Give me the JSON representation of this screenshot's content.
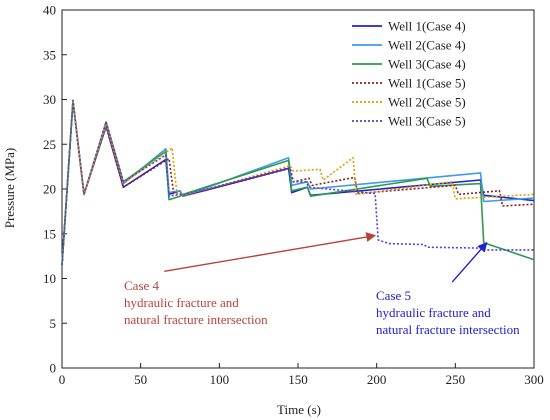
{
  "chart_data": {
    "type": "line",
    "title": "",
    "xlabel": "Time (s)",
    "ylabel": "Pressure (MPa)",
    "xlim": [
      0,
      300
    ],
    "ylim": [
      0,
      40
    ],
    "xticks": [
      0,
      50,
      100,
      150,
      200,
      250,
      300
    ],
    "yticks": [
      0,
      5,
      10,
      15,
      20,
      25,
      30,
      35,
      40
    ],
    "grid": false,
    "legend_position": "top-right",
    "series": [
      {
        "name": "Well 1(Case 4)",
        "color": "#1f1fd4",
        "dash": "solid",
        "points": [
          [
            0,
            11.5
          ],
          [
            7,
            29.8
          ],
          [
            14,
            19.4
          ],
          [
            28,
            27
          ],
          [
            39,
            20.2
          ],
          [
            66,
            23.3
          ],
          [
            68,
            19.4
          ],
          [
            75,
            19.8
          ],
          [
            77,
            19.2
          ],
          [
            144,
            22.3
          ],
          [
            146,
            19.6
          ],
          [
            156,
            20.2
          ],
          [
            158,
            19.3
          ],
          [
            266,
            21
          ],
          [
            268,
            19.3
          ],
          [
            300,
            18.7
          ]
        ]
      },
      {
        "name": "Well 2(Case 4)",
        "color": "#3d9be8",
        "dash": "solid",
        "points": [
          [
            0,
            11.5
          ],
          [
            7,
            29.8
          ],
          [
            14,
            19.4
          ],
          [
            28,
            27.3
          ],
          [
            39,
            20.6
          ],
          [
            66,
            24.5
          ],
          [
            68,
            19.6
          ],
          [
            75,
            19.8
          ],
          [
            77,
            19.2
          ],
          [
            144,
            23.5
          ],
          [
            146,
            20.4
          ],
          [
            156,
            20.8
          ],
          [
            158,
            20
          ],
          [
            266,
            21.8
          ],
          [
            268,
            18.6
          ],
          [
            300,
            19
          ]
        ]
      },
      {
        "name": "Well 3(Case 4)",
        "color": "#2e9a4a",
        "dash": "solid",
        "points": [
          [
            0,
            11.5
          ],
          [
            7,
            29.9
          ],
          [
            14,
            19.4
          ],
          [
            28,
            27.5
          ],
          [
            39,
            20.8
          ],
          [
            66,
            24.2
          ],
          [
            68,
            18.8
          ],
          [
            75,
            19.2
          ],
          [
            77,
            19.4
          ],
          [
            144,
            23.2
          ],
          [
            146,
            19.8
          ],
          [
            156,
            20.2
          ],
          [
            158,
            19.2
          ],
          [
            232,
            21.2
          ],
          [
            234,
            20.3
          ],
          [
            266,
            20.6
          ],
          [
            268,
            14
          ],
          [
            280,
            13.3
          ],
          [
            300,
            12.1
          ]
        ]
      },
      {
        "name": "Well 1(Case 5)",
        "color": "#8b2020",
        "dash": "dot",
        "points": [
          [
            0,
            11.5
          ],
          [
            7,
            29.8
          ],
          [
            14,
            19.4
          ],
          [
            28,
            27
          ],
          [
            39,
            20.2
          ],
          [
            68,
            23.4
          ],
          [
            71,
            19.5
          ],
          [
            75,
            19.5
          ],
          [
            77,
            19.2
          ],
          [
            145,
            22.3
          ],
          [
            147,
            20.8
          ],
          [
            157,
            21.2
          ],
          [
            159,
            20.4
          ],
          [
            186,
            21.3
          ],
          [
            188,
            19.5
          ],
          [
            250,
            20.4
          ],
          [
            252,
            19.4
          ],
          [
            278,
            19.8
          ],
          [
            280,
            18.1
          ],
          [
            300,
            18.3
          ]
        ]
      },
      {
        "name": "Well 2(Case 5)",
        "color": "#d9a000",
        "dash": "dot",
        "points": [
          [
            0,
            11.5
          ],
          [
            7,
            29.8
          ],
          [
            14,
            19.4
          ],
          [
            28,
            27.3
          ],
          [
            39,
            20.6
          ],
          [
            70,
            24.6
          ],
          [
            73,
            19.5
          ],
          [
            75,
            19.5
          ],
          [
            77,
            19.2
          ],
          [
            145,
            22.6
          ],
          [
            147,
            22
          ],
          [
            164,
            22.2
          ],
          [
            166,
            21
          ],
          [
            185,
            23.5
          ],
          [
            187,
            19.4
          ],
          [
            248,
            20.8
          ],
          [
            250,
            18.9
          ],
          [
            300,
            19.4
          ]
        ]
      },
      {
        "name": "Well 3(Case 5)",
        "color": "#5a3bd8",
        "dash": "dot",
        "points": [
          [
            0,
            11.5
          ],
          [
            7,
            29.9
          ],
          [
            14,
            19.4
          ],
          [
            28,
            27.5
          ],
          [
            39,
            20.8
          ],
          [
            66,
            23.8
          ],
          [
            68,
            19.2
          ],
          [
            75,
            19.4
          ],
          [
            77,
            19.3
          ],
          [
            145,
            22.4
          ],
          [
            147,
            20.8
          ],
          [
            155,
            20.8
          ],
          [
            157,
            20.2
          ],
          [
            199,
            19.5
          ],
          [
            201,
            14.3
          ],
          [
            208,
            13.9
          ],
          [
            230,
            13.8
          ],
          [
            232,
            13.5
          ],
          [
            266,
            13.4
          ],
          [
            268,
            13.2
          ],
          [
            300,
            13.2
          ]
        ]
      }
    ],
    "annotations": [
      {
        "lines": [
          "Case 4",
          "hydraulic fracture and",
          "natural fracture intersection"
        ],
        "color": "#b8433a",
        "arrow_from": [
          65,
          10.8
        ],
        "arrow_to": [
          199,
          14.8
        ]
      },
      {
        "lines": [
          "Case 5",
          "hydraulic fracture and",
          "natural fracture intersection"
        ],
        "color": "#2020d8",
        "arrow_from": [
          248,
          9.6
        ],
        "arrow_to": [
          270,
          14
        ]
      }
    ]
  }
}
